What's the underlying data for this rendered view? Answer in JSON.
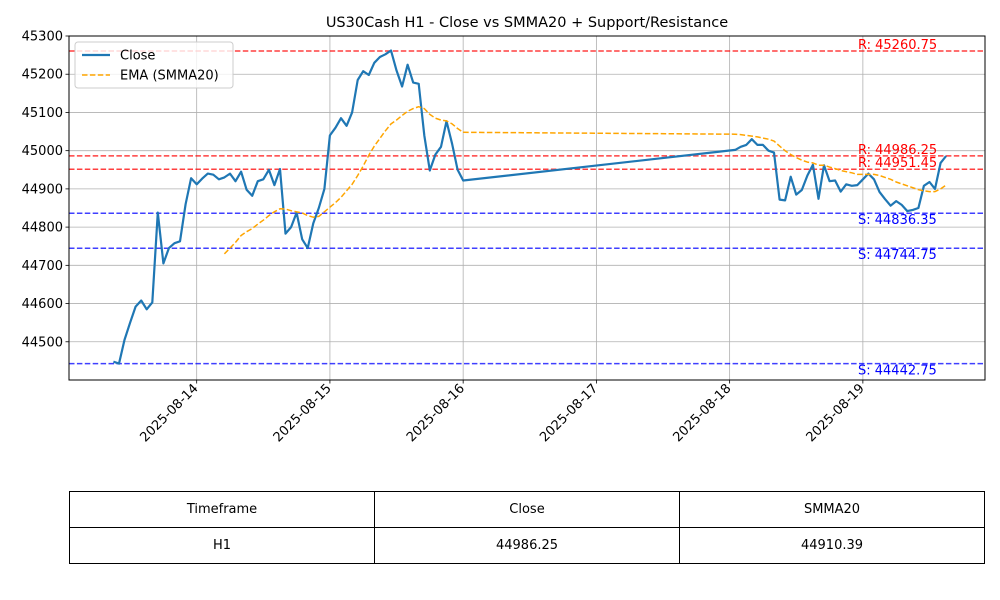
{
  "chart_data": {
    "type": "line",
    "title": "US30Cash H1 - Close vs SMMA20 + Support/Resistance",
    "xlabel": "",
    "ylabel": "",
    "x_axis_type": "date",
    "xlim": [
      "2025-08-13T01:00",
      "2025-08-19T22:00"
    ],
    "ylim": [
      44400,
      45300
    ],
    "yticks": [
      44500,
      44600,
      44700,
      44800,
      44900,
      45000,
      45100,
      45200,
      45300
    ],
    "xticks": [
      "2025-08-14",
      "2025-08-15",
      "2025-08-16",
      "2025-08-17",
      "2025-08-18",
      "2025-08-19"
    ],
    "grid": true,
    "legend_placement": "top-left",
    "series": [
      {
        "name": "Close",
        "style": "solid",
        "color": "#1f77b4",
        "points": [
          [
            "2025-08-13T09:00",
            44448
          ],
          [
            "2025-08-13T10:00",
            44443
          ],
          [
            "2025-08-13T11:00",
            44505
          ],
          [
            "2025-08-13T12:00",
            44550
          ],
          [
            "2025-08-13T13:00",
            44592
          ],
          [
            "2025-08-13T14:00",
            44608
          ],
          [
            "2025-08-13T15:00",
            44585
          ],
          [
            "2025-08-13T16:00",
            44603
          ],
          [
            "2025-08-13T17:00",
            44838
          ],
          [
            "2025-08-13T18:00",
            44705
          ],
          [
            "2025-08-13T19:00",
            44745
          ],
          [
            "2025-08-13T20:00",
            44758
          ],
          [
            "2025-08-13T21:00",
            44763
          ],
          [
            "2025-08-13T22:00",
            44860
          ],
          [
            "2025-08-13T23:00",
            44928
          ],
          [
            "2025-08-14T00:00",
            44912
          ],
          [
            "2025-08-14T01:00",
            44927
          ],
          [
            "2025-08-14T02:00",
            44940
          ],
          [
            "2025-08-14T03:00",
            44937
          ],
          [
            "2025-08-14T04:00",
            44925
          ],
          [
            "2025-08-14T05:00",
            44930
          ],
          [
            "2025-08-14T06:00",
            44940
          ],
          [
            "2025-08-14T07:00",
            44920
          ],
          [
            "2025-08-14T08:00",
            44945
          ],
          [
            "2025-08-14T09:00",
            44898
          ],
          [
            "2025-08-14T10:00",
            44882
          ],
          [
            "2025-08-14T11:00",
            44920
          ],
          [
            "2025-08-14T12:00",
            44925
          ],
          [
            "2025-08-14T13:00",
            44950
          ],
          [
            "2025-08-14T14:00",
            44910
          ],
          [
            "2025-08-14T15:00",
            44952
          ],
          [
            "2025-08-14T16:00",
            44783
          ],
          [
            "2025-08-14T17:00",
            44800
          ],
          [
            "2025-08-14T18:00",
            44838
          ],
          [
            "2025-08-14T19:00",
            44768
          ],
          [
            "2025-08-14T20:00",
            44745
          ],
          [
            "2025-08-14T21:00",
            44810
          ],
          [
            "2025-08-14T22:00",
            44850
          ],
          [
            "2025-08-14T23:00",
            44900
          ],
          [
            "2025-08-15T00:00",
            45040
          ],
          [
            "2025-08-15T01:00",
            45060
          ],
          [
            "2025-08-15T02:00",
            45085
          ],
          [
            "2025-08-15T03:00",
            45065
          ],
          [
            "2025-08-15T04:00",
            45100
          ],
          [
            "2025-08-15T05:00",
            45185
          ],
          [
            "2025-08-15T06:00",
            45208
          ],
          [
            "2025-08-15T07:00",
            45198
          ],
          [
            "2025-08-15T08:00",
            45230
          ],
          [
            "2025-08-15T09:00",
            45245
          ],
          [
            "2025-08-15T10:00",
            45252
          ],
          [
            "2025-08-15T11:00",
            45262
          ],
          [
            "2025-08-15T12:00",
            45210
          ],
          [
            "2025-08-15T13:00",
            45168
          ],
          [
            "2025-08-15T14:00",
            45225
          ],
          [
            "2025-08-15T15:00",
            45178
          ],
          [
            "2025-08-15T16:00",
            45175
          ],
          [
            "2025-08-15T17:00",
            45040
          ],
          [
            "2025-08-15T18:00",
            44948
          ],
          [
            "2025-08-15T19:00",
            44990
          ],
          [
            "2025-08-15T20:00",
            45010
          ],
          [
            "2025-08-15T21:00",
            45077
          ],
          [
            "2025-08-15T22:00",
            45018
          ],
          [
            "2025-08-15T23:00",
            44950
          ],
          [
            "2025-08-16T00:00",
            44922
          ],
          [
            "2025-08-18T01:00",
            45002
          ],
          [
            "2025-08-18T02:00",
            45010
          ],
          [
            "2025-08-18T03:00",
            45015
          ],
          [
            "2025-08-18T04:00",
            45030
          ],
          [
            "2025-08-18T05:00",
            45015
          ],
          [
            "2025-08-18T06:00",
            45015
          ],
          [
            "2025-08-18T07:00",
            45000
          ],
          [
            "2025-08-18T08:00",
            44995
          ],
          [
            "2025-08-18T09:00",
            44872
          ],
          [
            "2025-08-18T10:00",
            44870
          ],
          [
            "2025-08-18T11:00",
            44932
          ],
          [
            "2025-08-18T12:00",
            44885
          ],
          [
            "2025-08-18T13:00",
            44897
          ],
          [
            "2025-08-18T14:00",
            44935
          ],
          [
            "2025-08-18T15:00",
            44963
          ],
          [
            "2025-08-18T16:00",
            44874
          ],
          [
            "2025-08-18T17:00",
            44962
          ],
          [
            "2025-08-18T18:00",
            44920
          ],
          [
            "2025-08-18T19:00",
            44922
          ],
          [
            "2025-08-18T20:00",
            44893
          ],
          [
            "2025-08-18T21:00",
            44912
          ],
          [
            "2025-08-18T22:00",
            44908
          ],
          [
            "2025-08-18T23:00",
            44910
          ],
          [
            "2025-08-19T00:00",
            44925
          ],
          [
            "2025-08-19T01:00",
            44940
          ],
          [
            "2025-08-19T02:00",
            44925
          ],
          [
            "2025-08-19T03:00",
            44892
          ],
          [
            "2025-08-19T04:00",
            44873
          ],
          [
            "2025-08-19T05:00",
            44856
          ],
          [
            "2025-08-19T06:00",
            44868
          ],
          [
            "2025-08-19T07:00",
            44858
          ],
          [
            "2025-08-19T08:00",
            44842
          ],
          [
            "2025-08-19T09:00",
            44845
          ],
          [
            "2025-08-19T10:00",
            44850
          ],
          [
            "2025-08-19T11:00",
            44908
          ],
          [
            "2025-08-19T12:00",
            44918
          ],
          [
            "2025-08-19T13:00",
            44900
          ],
          [
            "2025-08-19T14:00",
            44968
          ],
          [
            "2025-08-19T15:00",
            44986
          ]
        ]
      },
      {
        "name": "EMA (SMMA20)",
        "style": "dashed",
        "color": "#ffa500",
        "points": [
          [
            "2025-08-14T05:00",
            44730
          ],
          [
            "2025-08-14T06:00",
            44745
          ],
          [
            "2025-08-14T07:00",
            44760
          ],
          [
            "2025-08-14T08:00",
            44778
          ],
          [
            "2025-08-14T09:00",
            44788
          ],
          [
            "2025-08-14T10:00",
            44796
          ],
          [
            "2025-08-14T11:00",
            44808
          ],
          [
            "2025-08-14T12:00",
            44818
          ],
          [
            "2025-08-14T13:00",
            44830
          ],
          [
            "2025-08-14T14:00",
            44840
          ],
          [
            "2025-08-14T15:00",
            44848
          ],
          [
            "2025-08-14T16:00",
            44847
          ],
          [
            "2025-08-14T17:00",
            44843
          ],
          [
            "2025-08-14T18:00",
            44840
          ],
          [
            "2025-08-14T19:00",
            44837
          ],
          [
            "2025-08-14T20:00",
            44830
          ],
          [
            "2025-08-14T21:00",
            44826
          ],
          [
            "2025-08-14T22:00",
            44828
          ],
          [
            "2025-08-14T23:00",
            44840
          ],
          [
            "2025-08-15T00:00",
            44852
          ],
          [
            "2025-08-15T01:00",
            44864
          ],
          [
            "2025-08-15T02:00",
            44878
          ],
          [
            "2025-08-15T03:00",
            44895
          ],
          [
            "2025-08-15T04:00",
            44912
          ],
          [
            "2025-08-15T05:00",
            44935
          ],
          [
            "2025-08-15T06:00",
            44960
          ],
          [
            "2025-08-15T07:00",
            44988
          ],
          [
            "2025-08-15T08:00",
            45012
          ],
          [
            "2025-08-15T09:00",
            45032
          ],
          [
            "2025-08-15T10:00",
            45052
          ],
          [
            "2025-08-15T11:00",
            45070
          ],
          [
            "2025-08-15T12:00",
            45080
          ],
          [
            "2025-08-15T13:00",
            45092
          ],
          [
            "2025-08-15T14:00",
            45103
          ],
          [
            "2025-08-15T15:00",
            45110
          ],
          [
            "2025-08-15T16:00",
            45115
          ],
          [
            "2025-08-15T17:00",
            45110
          ],
          [
            "2025-08-15T18:00",
            45095
          ],
          [
            "2025-08-15T19:00",
            45085
          ],
          [
            "2025-08-15T20:00",
            45080
          ],
          [
            "2025-08-15T21:00",
            45078
          ],
          [
            "2025-08-15T22:00",
            45070
          ],
          [
            "2025-08-15T23:00",
            45058
          ],
          [
            "2025-08-16T00:00",
            45048
          ],
          [
            "2025-08-18T01:00",
            45043
          ],
          [
            "2025-08-18T02:00",
            45042
          ],
          [
            "2025-08-18T03:00",
            45040
          ],
          [
            "2025-08-18T04:00",
            45038
          ],
          [
            "2025-08-18T05:00",
            45036
          ],
          [
            "2025-08-18T06:00",
            45033
          ],
          [
            "2025-08-18T07:00",
            45030
          ],
          [
            "2025-08-18T08:00",
            45025
          ],
          [
            "2025-08-18T09:00",
            45012
          ],
          [
            "2025-08-18T10:00",
            45000
          ],
          [
            "2025-08-18T11:00",
            44990
          ],
          [
            "2025-08-18T12:00",
            44982
          ],
          [
            "2025-08-18T13:00",
            44975
          ],
          [
            "2025-08-18T14:00",
            44970
          ],
          [
            "2025-08-18T15:00",
            44968
          ],
          [
            "2025-08-18T16:00",
            44962
          ],
          [
            "2025-08-18T17:00",
            44962
          ],
          [
            "2025-08-18T18:00",
            44957
          ],
          [
            "2025-08-18T19:00",
            44953
          ],
          [
            "2025-08-18T20:00",
            44948
          ],
          [
            "2025-08-18T21:00",
            44945
          ],
          [
            "2025-08-18T22:00",
            44942
          ],
          [
            "2025-08-18T23:00",
            44938
          ],
          [
            "2025-08-19T00:00",
            44938
          ],
          [
            "2025-08-19T01:00",
            44938
          ],
          [
            "2025-08-19T02:00",
            44938
          ],
          [
            "2025-08-19T03:00",
            44935
          ],
          [
            "2025-08-19T04:00",
            44930
          ],
          [
            "2025-08-19T05:00",
            44925
          ],
          [
            "2025-08-19T06:00",
            44918
          ],
          [
            "2025-08-19T07:00",
            44913
          ],
          [
            "2025-08-19T08:00",
            44908
          ],
          [
            "2025-08-19T09:00",
            44903
          ],
          [
            "2025-08-19T10:00",
            44898
          ],
          [
            "2025-08-19T11:00",
            44895
          ],
          [
            "2025-08-19T12:00",
            44893
          ],
          [
            "2025-08-19T13:00",
            44893
          ],
          [
            "2025-08-19T14:00",
            44900
          ],
          [
            "2025-08-19T15:00",
            44910
          ]
        ]
      }
    ],
    "levels": [
      {
        "kind": "resistance",
        "value": 45260.75,
        "label": "R: 45260.75",
        "color": "#ff0000"
      },
      {
        "kind": "resistance",
        "value": 44986.25,
        "label": "R: 44986.25",
        "color": "#ff0000"
      },
      {
        "kind": "resistance",
        "value": 44951.45,
        "label": "R: 44951.45",
        "color": "#ff0000"
      },
      {
        "kind": "support",
        "value": 44836.35,
        "label": "S: 44836.35",
        "color": "#0000ff"
      },
      {
        "kind": "support",
        "value": 44744.75,
        "label": "S: 44744.75",
        "color": "#0000ff"
      },
      {
        "kind": "support",
        "value": 44442.75,
        "label": "S: 44442.75",
        "color": "#0000ff"
      }
    ]
  },
  "table": {
    "headers": [
      "Timeframe",
      "Close",
      "SMMA20"
    ],
    "rows": [
      [
        "H1",
        "44986.25",
        "44910.39"
      ]
    ]
  }
}
